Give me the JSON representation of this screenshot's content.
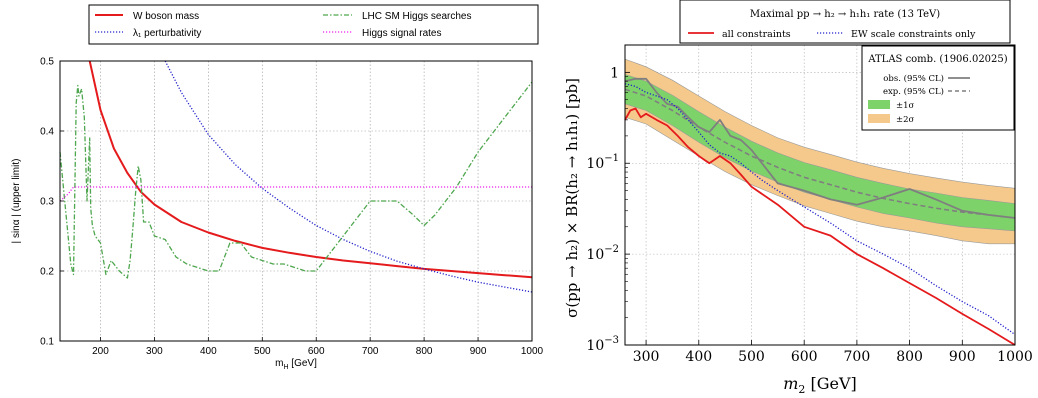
{
  "chart_data": [
    {
      "type": "line",
      "xlabel_main": "m",
      "xlabel_sub": "H",
      "xlabel_unit": " [GeV]",
      "ylabel": "| sinα |  (upper limit)",
      "xlim": [
        125,
        1000
      ],
      "ylim": [
        0.1,
        0.5
      ],
      "xticks": [
        200,
        300,
        400,
        500,
        600,
        700,
        800,
        900,
        1000
      ],
      "yticks": [
        0.1,
        0.2,
        0.3,
        0.4,
        0.5
      ],
      "ytick_labels": [
        "0.1",
        "0.2",
        "0.3",
        "0.4",
        "0.5"
      ],
      "grid": true,
      "legend_position": "top, outside",
      "series": [
        {
          "name": "W boson mass",
          "color": "#e41a1c",
          "style": "solid",
          "x": [
            180,
            200,
            225,
            250,
            275,
            300,
            350,
            400,
            450,
            500,
            550,
            600,
            650,
            700,
            750,
            800,
            850,
            900,
            950,
            1000
          ],
          "y": [
            0.5,
            0.43,
            0.375,
            0.34,
            0.313,
            0.295,
            0.27,
            0.255,
            0.243,
            0.233,
            0.226,
            0.22,
            0.215,
            0.211,
            0.207,
            0.203,
            0.2,
            0.197,
            0.194,
            0.191
          ]
        },
        {
          "name": "λ₁ perturbativity",
          "color": "#2121cc",
          "style": "dotted",
          "x": [
            320,
            350,
            400,
            450,
            500,
            550,
            600,
            650,
            700,
            750,
            800,
            850,
            900,
            950,
            1000
          ],
          "y": [
            0.5,
            0.455,
            0.395,
            0.352,
            0.318,
            0.29,
            0.265,
            0.245,
            0.228,
            0.214,
            0.203,
            0.193,
            0.184,
            0.177,
            0.17
          ]
        },
        {
          "name": "LHC SM Higgs searches",
          "color": "#4ea64e",
          "style": "dash-dot",
          "x": [
            125,
            135,
            145,
            150,
            155,
            158,
            160,
            165,
            170,
            175,
            180,
            182,
            185,
            190,
            200,
            210,
            220,
            235,
            250,
            255,
            260,
            265,
            270,
            275,
            280,
            290,
            300,
            320,
            340,
            360,
            380,
            400,
            420,
            440,
            460,
            480,
            500,
            520,
            540,
            560,
            580,
            600,
            620,
            650,
            680,
            700,
            720,
            750,
            780,
            800,
            820,
            840,
            860,
            900,
            950,
            1000
          ],
          "y": [
            0.37,
            0.29,
            0.21,
            0.195,
            0.44,
            0.465,
            0.45,
            0.46,
            0.42,
            0.3,
            0.39,
            0.29,
            0.265,
            0.25,
            0.24,
            0.195,
            0.215,
            0.2,
            0.19,
            0.215,
            0.26,
            0.31,
            0.35,
            0.33,
            0.27,
            0.27,
            0.25,
            0.245,
            0.22,
            0.21,
            0.205,
            0.2,
            0.2,
            0.24,
            0.24,
            0.22,
            0.215,
            0.21,
            0.21,
            0.205,
            0.2,
            0.2,
            0.22,
            0.25,
            0.28,
            0.3,
            0.3,
            0.3,
            0.28,
            0.265,
            0.28,
            0.3,
            0.32,
            0.37,
            0.42,
            0.47
          ]
        },
        {
          "name": "Higgs signal rates",
          "color": "#ee22ee",
          "style": "dotted",
          "x": [
            125,
            140,
            150,
            1000
          ],
          "y": [
            0.3,
            0.31,
            0.32,
            0.32
          ]
        }
      ]
    },
    {
      "type": "area",
      "title": "Maximal pp → h₂ → h₁h₁ rate (13 TeV)",
      "xlabel_main": "m",
      "xlabel_sub": "2",
      "xlabel_unit": " [GeV]",
      "ylabel": "σ(pp → h₂) × BR(h₂ → h₁h₁) [pb]",
      "y_scale": "log",
      "xlim": [
        260,
        1000
      ],
      "ylim": [
        0.001,
        2
      ],
      "xticks": [
        300,
        400,
        500,
        600,
        700,
        800,
        900,
        1000
      ],
      "yticks": [
        0.001,
        0.01,
        0.1,
        1
      ],
      "ytick_labels": [
        {
          "base": "10",
          "exp": "−3"
        },
        {
          "base": "10",
          "exp": "−2"
        },
        {
          "base": "10",
          "exp": "−1"
        },
        {
          "base": "1",
          "exp": ""
        }
      ],
      "grid": true,
      "legend_top_position": "top, outside",
      "legend_inset_title": "ATLAS comb. (1906.02025)",
      "legend_inset_position": "top-right",
      "series": [
        {
          "name": "all constraints",
          "color": "#e41a1c",
          "style": "solid",
          "x": [
            260,
            270,
            280,
            290,
            300,
            320,
            340,
            360,
            380,
            400,
            420,
            440,
            460,
            480,
            500,
            550,
            600,
            650,
            700,
            750,
            800,
            850,
            900,
            950,
            1000
          ],
          "y": [
            0.3,
            0.38,
            0.4,
            0.32,
            0.35,
            0.3,
            0.26,
            0.2,
            0.15,
            0.12,
            0.1,
            0.12,
            0.1,
            0.075,
            0.055,
            0.035,
            0.02,
            0.016,
            0.01,
            0.007,
            0.0048,
            0.0033,
            0.0022,
            0.0015,
            0.001
          ]
        },
        {
          "name": "EW scale constraints only",
          "color": "#2121cc",
          "style": "dotted",
          "x": [
            260,
            280,
            300,
            320,
            340,
            360,
            380,
            400,
            420,
            440,
            460,
            480,
            500,
            520,
            550,
            600,
            650,
            700,
            750,
            800,
            850,
            900,
            950,
            1000
          ],
          "y": [
            0.75,
            0.7,
            0.6,
            0.55,
            0.5,
            0.4,
            0.3,
            0.22,
            0.16,
            0.13,
            0.12,
            0.1,
            0.08,
            0.065,
            0.05,
            0.033,
            0.022,
            0.014,
            0.01,
            0.007,
            0.0045,
            0.003,
            0.0021,
            0.0013
          ]
        },
        {
          "name": "obs. (95% CL)",
          "color": "#7f7f7f",
          "style": "solid",
          "x": [
            260,
            280,
            300,
            320,
            340,
            360,
            380,
            400,
            420,
            440,
            460,
            480,
            500,
            550,
            600,
            650,
            700,
            750,
            800,
            850,
            900,
            950,
            1000
          ],
          "y": [
            0.8,
            0.85,
            0.85,
            0.6,
            0.45,
            0.42,
            0.32,
            0.25,
            0.22,
            0.3,
            0.2,
            0.18,
            0.14,
            0.06,
            0.05,
            0.04,
            0.035,
            0.042,
            0.052,
            0.04,
            0.03,
            0.027,
            0.025
          ]
        },
        {
          "name": "exp. (95% CL)",
          "color": "#7f7f7f",
          "style": "dashed",
          "x": [
            260,
            300,
            350,
            400,
            450,
            500,
            550,
            600,
            650,
            700,
            750,
            800,
            850,
            900,
            950,
            1000
          ],
          "y": [
            0.65,
            0.55,
            0.38,
            0.25,
            0.17,
            0.12,
            0.09,
            0.07,
            0.058,
            0.048,
            0.041,
            0.036,
            0.032,
            0.029,
            0.027,
            0.025
          ]
        },
        {
          "name": "±1σ",
          "color": "#7dd36a",
          "type": "band",
          "x": [
            260,
            300,
            350,
            400,
            450,
            500,
            550,
            600,
            650,
            700,
            750,
            800,
            850,
            900,
            950,
            1000
          ],
          "y_low": [
            0.45,
            0.38,
            0.26,
            0.17,
            0.115,
            0.082,
            0.062,
            0.048,
            0.04,
            0.033,
            0.028,
            0.025,
            0.022,
            0.02,
            0.019,
            0.018
          ],
          "y_high": [
            0.95,
            0.8,
            0.56,
            0.37,
            0.25,
            0.175,
            0.13,
            0.102,
            0.085,
            0.07,
            0.06,
            0.052,
            0.047,
            0.042,
            0.039,
            0.036
          ]
        },
        {
          "name": "±2σ",
          "color": "#f5c98b",
          "type": "band",
          "x": [
            260,
            300,
            350,
            400,
            450,
            500,
            550,
            600,
            650,
            700,
            750,
            800,
            850,
            900,
            950,
            1000
          ],
          "y_low": [
            0.32,
            0.27,
            0.18,
            0.12,
            0.081,
            0.058,
            0.044,
            0.034,
            0.028,
            0.023,
            0.02,
            0.018,
            0.016,
            0.014,
            0.013,
            0.013
          ],
          "y_high": [
            1.4,
            1.15,
            0.82,
            0.55,
            0.37,
            0.26,
            0.19,
            0.15,
            0.125,
            0.103,
            0.088,
            0.077,
            0.069,
            0.062,
            0.057,
            0.053
          ]
        }
      ]
    }
  ]
}
